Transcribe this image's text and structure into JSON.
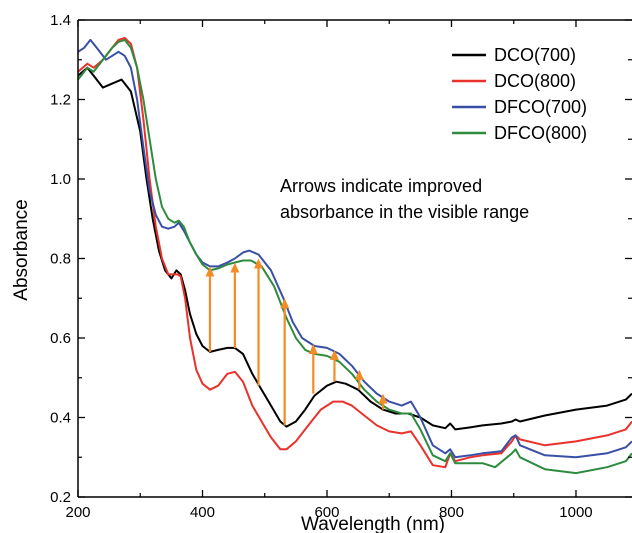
{
  "chart_data": {
    "type": "line",
    "title": "",
    "xlabel": "Wavelength (nm)",
    "ylabel": "Absorbance",
    "xlim": [
      200,
      1090
    ],
    "ylim": [
      0.2,
      1.4
    ],
    "xticks": [
      200,
      400,
      600,
      800,
      1000
    ],
    "yticks": [
      0.2,
      0.4,
      0.6,
      0.8,
      1.0,
      1.2,
      1.4
    ],
    "xtick_labels": [
      "200",
      "400",
      "600",
      "800",
      "1000"
    ],
    "ytick_labels": [
      "0.2",
      "0.4",
      "0.6",
      "0.8",
      "1.0",
      "1.2",
      "1.4"
    ],
    "grid": false,
    "legend_position": "top-right",
    "annotation": [
      "Arrows indicate improved",
      "absorbance in the visible range"
    ],
    "series": [
      {
        "name": "DCO(700)",
        "color": "#000000",
        "points": [
          [
            200,
            1.26
          ],
          [
            215,
            1.28
          ],
          [
            225,
            1.26
          ],
          [
            240,
            1.23
          ],
          [
            255,
            1.24
          ],
          [
            270,
            1.25
          ],
          [
            285,
            1.22
          ],
          [
            300,
            1.12
          ],
          [
            310,
            1.0
          ],
          [
            320,
            0.9
          ],
          [
            330,
            0.82
          ],
          [
            340,
            0.77
          ],
          [
            350,
            0.75
          ],
          [
            358,
            0.77
          ],
          [
            365,
            0.76
          ],
          [
            372,
            0.72
          ],
          [
            380,
            0.66
          ],
          [
            390,
            0.61
          ],
          [
            400,
            0.58
          ],
          [
            412,
            0.565
          ],
          [
            425,
            0.57
          ],
          [
            440,
            0.575
          ],
          [
            452,
            0.575
          ],
          [
            465,
            0.56
          ],
          [
            480,
            0.51
          ],
          [
            495,
            0.47
          ],
          [
            510,
            0.43
          ],
          [
            525,
            0.39
          ],
          [
            535,
            0.377
          ],
          [
            550,
            0.39
          ],
          [
            565,
            0.42
          ],
          [
            580,
            0.455
          ],
          [
            600,
            0.48
          ],
          [
            615,
            0.49
          ],
          [
            630,
            0.485
          ],
          [
            650,
            0.47
          ],
          [
            670,
            0.44
          ],
          [
            690,
            0.42
          ],
          [
            710,
            0.41
          ],
          [
            730,
            0.41
          ],
          [
            750,
            0.4
          ],
          [
            770,
            0.38
          ],
          [
            790,
            0.373
          ],
          [
            798,
            0.385
          ],
          [
            806,
            0.37
          ],
          [
            830,
            0.375
          ],
          [
            850,
            0.38
          ],
          [
            880,
            0.385
          ],
          [
            897,
            0.39
          ],
          [
            903,
            0.395
          ],
          [
            910,
            0.39
          ],
          [
            950,
            0.405
          ],
          [
            1000,
            0.42
          ],
          [
            1050,
            0.43
          ],
          [
            1080,
            0.445
          ],
          [
            1090,
            0.46
          ]
        ]
      },
      {
        "name": "DCO(800)",
        "color": "#e8322b",
        "points": [
          [
            200,
            1.27
          ],
          [
            215,
            1.29
          ],
          [
            225,
            1.28
          ],
          [
            240,
            1.3
          ],
          [
            255,
            1.33
          ],
          [
            265,
            1.35
          ],
          [
            275,
            1.355
          ],
          [
            285,
            1.34
          ],
          [
            295,
            1.28
          ],
          [
            305,
            1.15
          ],
          [
            315,
            1.0
          ],
          [
            325,
            0.88
          ],
          [
            335,
            0.8
          ],
          [
            345,
            0.76
          ],
          [
            352,
            0.76
          ],
          [
            360,
            0.76
          ],
          [
            365,
            0.755
          ],
          [
            372,
            0.7
          ],
          [
            380,
            0.6
          ],
          [
            390,
            0.52
          ],
          [
            400,
            0.485
          ],
          [
            412,
            0.47
          ],
          [
            425,
            0.48
          ],
          [
            440,
            0.51
          ],
          [
            452,
            0.515
          ],
          [
            465,
            0.49
          ],
          [
            480,
            0.43
          ],
          [
            495,
            0.39
          ],
          [
            510,
            0.35
          ],
          [
            525,
            0.32
          ],
          [
            535,
            0.32
          ],
          [
            550,
            0.34
          ],
          [
            570,
            0.38
          ],
          [
            590,
            0.42
          ],
          [
            610,
            0.44
          ],
          [
            625,
            0.44
          ],
          [
            640,
            0.43
          ],
          [
            660,
            0.405
          ],
          [
            680,
            0.38
          ],
          [
            700,
            0.365
          ],
          [
            720,
            0.36
          ],
          [
            735,
            0.365
          ],
          [
            750,
            0.33
          ],
          [
            770,
            0.28
          ],
          [
            790,
            0.275
          ],
          [
            798,
            0.31
          ],
          [
            806,
            0.29
          ],
          [
            830,
            0.3
          ],
          [
            850,
            0.305
          ],
          [
            880,
            0.31
          ],
          [
            897,
            0.34
          ],
          [
            903,
            0.355
          ],
          [
            910,
            0.345
          ],
          [
            950,
            0.33
          ],
          [
            1000,
            0.34
          ],
          [
            1050,
            0.355
          ],
          [
            1080,
            0.37
          ],
          [
            1090,
            0.39
          ]
        ]
      },
      {
        "name": "DFCO(700)",
        "color": "#3a4fa6",
        "points": [
          [
            200,
            1.32
          ],
          [
            210,
            1.33
          ],
          [
            220,
            1.35
          ],
          [
            230,
            1.33
          ],
          [
            245,
            1.3
          ],
          [
            255,
            1.31
          ],
          [
            265,
            1.32
          ],
          [
            275,
            1.31
          ],
          [
            285,
            1.28
          ],
          [
            295,
            1.2
          ],
          [
            305,
            1.08
          ],
          [
            315,
            0.97
          ],
          [
            325,
            0.91
          ],
          [
            335,
            0.88
          ],
          [
            345,
            0.875
          ],
          [
            355,
            0.88
          ],
          [
            362,
            0.89
          ],
          [
            370,
            0.87
          ],
          [
            380,
            0.84
          ],
          [
            390,
            0.81
          ],
          [
            400,
            0.79
          ],
          [
            412,
            0.78
          ],
          [
            425,
            0.78
          ],
          [
            440,
            0.79
          ],
          [
            452,
            0.8
          ],
          [
            465,
            0.815
          ],
          [
            475,
            0.82
          ],
          [
            490,
            0.81
          ],
          [
            510,
            0.77
          ],
          [
            530,
            0.7
          ],
          [
            545,
            0.64
          ],
          [
            560,
            0.6
          ],
          [
            580,
            0.58
          ],
          [
            600,
            0.575
          ],
          [
            620,
            0.56
          ],
          [
            640,
            0.53
          ],
          [
            660,
            0.49
          ],
          [
            680,
            0.46
          ],
          [
            700,
            0.44
          ],
          [
            720,
            0.43
          ],
          [
            735,
            0.44
          ],
          [
            750,
            0.4
          ],
          [
            770,
            0.33
          ],
          [
            790,
            0.31
          ],
          [
            798,
            0.32
          ],
          [
            806,
            0.3
          ],
          [
            830,
            0.305
          ],
          [
            850,
            0.31
          ],
          [
            880,
            0.315
          ],
          [
            897,
            0.35
          ],
          [
            903,
            0.355
          ],
          [
            910,
            0.33
          ],
          [
            950,
            0.305
          ],
          [
            1000,
            0.3
          ],
          [
            1050,
            0.31
          ],
          [
            1080,
            0.325
          ],
          [
            1090,
            0.34
          ]
        ]
      },
      {
        "name": "DFCO(800)",
        "color": "#2e8b3e",
        "points": [
          [
            200,
            1.25
          ],
          [
            215,
            1.28
          ],
          [
            225,
            1.27
          ],
          [
            240,
            1.3
          ],
          [
            255,
            1.33
          ],
          [
            265,
            1.345
          ],
          [
            275,
            1.35
          ],
          [
            285,
            1.33
          ],
          [
            295,
            1.28
          ],
          [
            305,
            1.2
          ],
          [
            315,
            1.1
          ],
          [
            325,
            1.0
          ],
          [
            335,
            0.93
          ],
          [
            345,
            0.9
          ],
          [
            355,
            0.89
          ],
          [
            362,
            0.895
          ],
          [
            370,
            0.88
          ],
          [
            380,
            0.84
          ],
          [
            390,
            0.81
          ],
          [
            400,
            0.785
          ],
          [
            412,
            0.77
          ],
          [
            425,
            0.775
          ],
          [
            440,
            0.785
          ],
          [
            452,
            0.79
          ],
          [
            465,
            0.795
          ],
          [
            478,
            0.795
          ],
          [
            495,
            0.78
          ],
          [
            515,
            0.73
          ],
          [
            535,
            0.65
          ],
          [
            550,
            0.6
          ],
          [
            565,
            0.57
          ],
          [
            580,
            0.56
          ],
          [
            600,
            0.555
          ],
          [
            620,
            0.54
          ],
          [
            640,
            0.51
          ],
          [
            660,
            0.47
          ],
          [
            680,
            0.44
          ],
          [
            700,
            0.42
          ],
          [
            720,
            0.41
          ],
          [
            735,
            0.41
          ],
          [
            750,
            0.37
          ],
          [
            770,
            0.305
          ],
          [
            790,
            0.29
          ],
          [
            798,
            0.31
          ],
          [
            806,
            0.285
          ],
          [
            830,
            0.285
          ],
          [
            850,
            0.285
          ],
          [
            870,
            0.275
          ],
          [
            897,
            0.31
          ],
          [
            903,
            0.32
          ],
          [
            910,
            0.3
          ],
          [
            950,
            0.27
          ],
          [
            1000,
            0.26
          ],
          [
            1050,
            0.275
          ],
          [
            1080,
            0.29
          ],
          [
            1090,
            0.31
          ]
        ]
      }
    ],
    "arrows": {
      "color": "#f28c28",
      "items": [
        {
          "x": 412,
          "from": 0.565,
          "to": 0.78
        },
        {
          "x": 452,
          "from": 0.575,
          "to": 0.79
        },
        {
          "x": 490,
          "from": 0.48,
          "to": 0.8
        },
        {
          "x": 532,
          "from": 0.38,
          "to": 0.7
        },
        {
          "x": 578,
          "from": 0.46,
          "to": 0.585
        },
        {
          "x": 612,
          "from": 0.49,
          "to": 0.57
        },
        {
          "x": 652,
          "from": 0.47,
          "to": 0.52
        },
        {
          "x": 690,
          "from": 0.42,
          "to": 0.46
        }
      ]
    }
  }
}
